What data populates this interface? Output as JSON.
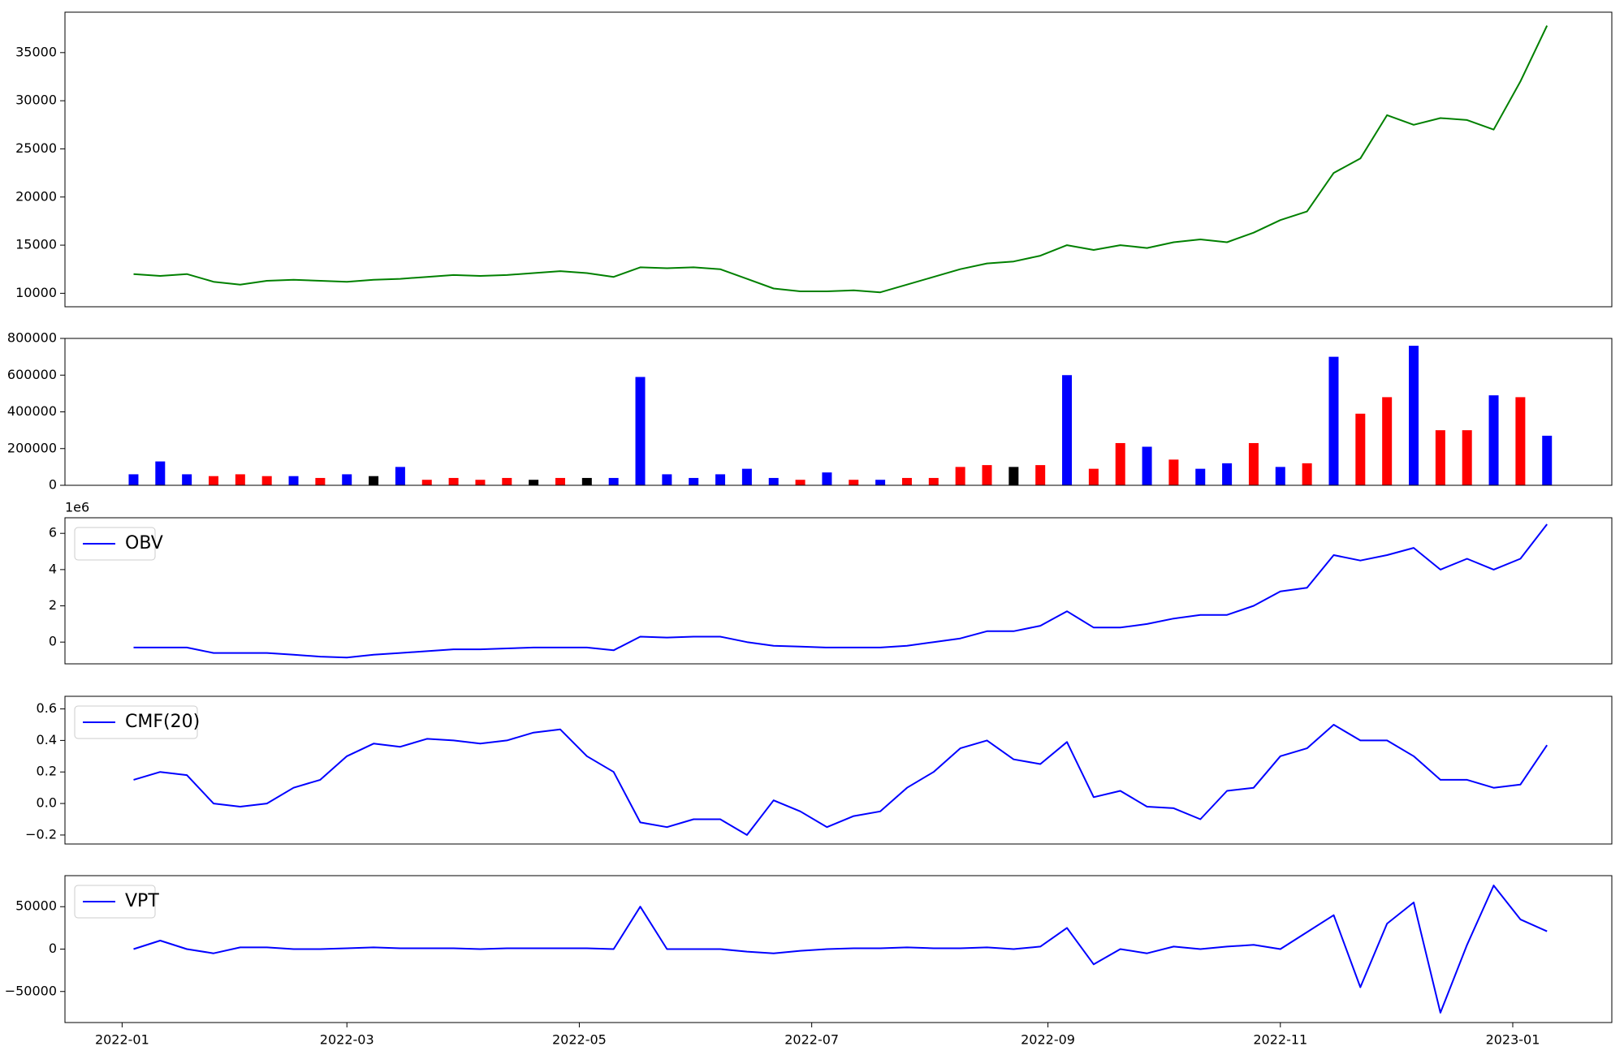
{
  "chart_data": [
    {
      "type": "line",
      "x": [
        "2022-01-04",
        "2022-01-11",
        "2022-01-18",
        "2022-01-25",
        "2022-02-01",
        "2022-02-08",
        "2022-02-15",
        "2022-02-22",
        "2022-03-01",
        "2022-03-08",
        "2022-03-15",
        "2022-03-22",
        "2022-03-29",
        "2022-04-05",
        "2022-04-12",
        "2022-04-19",
        "2022-04-26",
        "2022-05-03",
        "2022-05-10",
        "2022-05-17",
        "2022-05-24",
        "2022-05-31",
        "2022-06-07",
        "2022-06-14",
        "2022-06-21",
        "2022-06-28",
        "2022-07-05",
        "2022-07-12",
        "2022-07-19",
        "2022-07-26",
        "2022-08-02",
        "2022-08-09",
        "2022-08-16",
        "2022-08-23",
        "2022-08-30",
        "2022-09-06",
        "2022-09-13",
        "2022-09-20",
        "2022-09-27",
        "2022-10-04",
        "2022-10-11",
        "2022-10-18",
        "2022-10-25",
        "2022-11-01",
        "2022-11-08",
        "2022-11-15",
        "2022-11-22",
        "2022-11-29",
        "2022-12-06",
        "2022-12-13",
        "2022-12-20",
        "2022-12-27",
        "2023-01-03",
        "2023-01-10"
      ],
      "series": [
        {
          "color": "#008000",
          "values": [
            12000,
            11800,
            12000,
            11200,
            10900,
            11300,
            11400,
            11300,
            11200,
            11400,
            11500,
            11700,
            11900,
            11800,
            11900,
            12100,
            12300,
            12100,
            11700,
            12700,
            12600,
            12700,
            12500,
            11500,
            10500,
            10200,
            10200,
            10300,
            10100,
            10900,
            11700,
            12500,
            13100,
            13300,
            13900,
            15000,
            14500,
            15000,
            14700,
            15300,
            15600,
            15300,
            16300,
            17600,
            18500,
            22500,
            24000,
            28500,
            27500,
            28200,
            28000,
            27000,
            32000,
            37800
          ]
        }
      ],
      "xlim": [
        "2021-12-17",
        "2023-01-27"
      ],
      "ylim": [
        8600,
        39200
      ],
      "yticks": [
        10000,
        15000,
        20000,
        25000,
        30000,
        35000
      ]
    },
    {
      "type": "bar",
      "x": [
        "2022-01-04",
        "2022-01-11",
        "2022-01-18",
        "2022-01-25",
        "2022-02-01",
        "2022-02-08",
        "2022-02-15",
        "2022-02-22",
        "2022-03-01",
        "2022-03-08",
        "2022-03-15",
        "2022-03-22",
        "2022-03-29",
        "2022-04-05",
        "2022-04-12",
        "2022-04-19",
        "2022-04-26",
        "2022-05-03",
        "2022-05-10",
        "2022-05-17",
        "2022-05-24",
        "2022-05-31",
        "2022-06-07",
        "2022-06-14",
        "2022-06-21",
        "2022-06-28",
        "2022-07-05",
        "2022-07-12",
        "2022-07-19",
        "2022-07-26",
        "2022-08-02",
        "2022-08-09",
        "2022-08-16",
        "2022-08-23",
        "2022-08-30",
        "2022-09-06",
        "2022-09-13",
        "2022-09-20",
        "2022-09-27",
        "2022-10-04",
        "2022-10-11",
        "2022-10-18",
        "2022-10-25",
        "2022-11-01",
        "2022-11-08",
        "2022-11-15",
        "2022-11-22",
        "2022-11-29",
        "2022-12-06",
        "2022-12-13",
        "2022-12-20",
        "2022-12-27",
        "2023-01-03",
        "2023-01-10"
      ],
      "values": [
        60000,
        130000,
        60000,
        50000,
        60000,
        50000,
        50000,
        40000,
        60000,
        50000,
        100000,
        30000,
        40000,
        30000,
        40000,
        30000,
        40000,
        40000,
        40000,
        590000,
        60000,
        40000,
        60000,
        90000,
        40000,
        30000,
        70000,
        30000,
        30000,
        40000,
        40000,
        100000,
        110000,
        100000,
        110000,
        600000,
        90000,
        230000,
        210000,
        140000,
        90000,
        120000,
        230000,
        100000,
        120000,
        700000,
        390000,
        480000,
        760000,
        300000,
        300000,
        490000,
        480000,
        270000
      ],
      "colors": [
        "#0000ff",
        "#0000ff",
        "#0000ff",
        "#ff0000",
        "#ff0000",
        "#ff0000",
        "#0000ff",
        "#ff0000",
        "#0000ff",
        "#000000",
        "#0000ff",
        "#ff0000",
        "#ff0000",
        "#ff0000",
        "#ff0000",
        "#000000",
        "#ff0000",
        "#000000",
        "#0000ff",
        "#0000ff",
        "#0000ff",
        "#0000ff",
        "#0000ff",
        "#0000ff",
        "#0000ff",
        "#ff0000",
        "#0000ff",
        "#ff0000",
        "#0000ff",
        "#ff0000",
        "#ff0000",
        "#ff0000",
        "#ff0000",
        "#000000",
        "#ff0000",
        "#0000ff",
        "#ff0000",
        "#ff0000",
        "#0000ff",
        "#ff0000",
        "#0000ff",
        "#0000ff",
        "#ff0000",
        "#0000ff",
        "#ff0000",
        "#0000ff",
        "#ff0000",
        "#ff0000",
        "#0000ff",
        "#ff0000",
        "#ff0000",
        "#0000ff",
        "#ff0000",
        "#0000ff"
      ],
      "xlim": [
        "2021-12-17",
        "2023-01-27"
      ],
      "ylim": [
        0,
        800000
      ],
      "yticks": [
        0,
        200000,
        400000,
        600000,
        800000
      ]
    },
    {
      "type": "line",
      "offset_label": "1e6",
      "legend": "upper left",
      "x": [
        "2022-01-04",
        "2022-01-11",
        "2022-01-18",
        "2022-01-25",
        "2022-02-01",
        "2022-02-08",
        "2022-02-15",
        "2022-02-22",
        "2022-03-01",
        "2022-03-08",
        "2022-03-15",
        "2022-03-22",
        "2022-03-29",
        "2022-04-05",
        "2022-04-12",
        "2022-04-19",
        "2022-04-26",
        "2022-05-03",
        "2022-05-10",
        "2022-05-17",
        "2022-05-24",
        "2022-05-31",
        "2022-06-07",
        "2022-06-14",
        "2022-06-21",
        "2022-06-28",
        "2022-07-05",
        "2022-07-12",
        "2022-07-19",
        "2022-07-26",
        "2022-08-02",
        "2022-08-09",
        "2022-08-16",
        "2022-08-23",
        "2022-08-30",
        "2022-09-06",
        "2022-09-13",
        "2022-09-20",
        "2022-09-27",
        "2022-10-04",
        "2022-10-11",
        "2022-10-18",
        "2022-10-25",
        "2022-11-01",
        "2022-11-08",
        "2022-11-15",
        "2022-11-22",
        "2022-11-29",
        "2022-12-06",
        "2022-12-13",
        "2022-12-20",
        "2022-12-27",
        "2023-01-03",
        "2023-01-10"
      ],
      "series": [
        {
          "name": "OBV",
          "color": "#0000ff",
          "values": [
            -0.3,
            -0.3,
            -0.3,
            -0.6,
            -0.6,
            -0.6,
            -0.7,
            -0.8,
            -0.85,
            -0.7,
            -0.6,
            -0.5,
            -0.4,
            -0.4,
            -0.35,
            -0.3,
            -0.3,
            -0.3,
            -0.45,
            0.3,
            0.25,
            0.3,
            0.3,
            0.0,
            -0.2,
            -0.25,
            -0.3,
            -0.3,
            -0.3,
            -0.2,
            0.0,
            0.2,
            0.6,
            0.6,
            0.9,
            1.7,
            0.8,
            0.8,
            1.0,
            1.3,
            1.5,
            1.5,
            2.0,
            2.8,
            3.0,
            4.8,
            4.5,
            4.8,
            5.2,
            4.0,
            4.6,
            4.0,
            4.6,
            6.5
          ]
        }
      ],
      "xlim": [
        "2021-12-17",
        "2023-01-27"
      ],
      "ylim": [
        -1.2,
        6.86
      ],
      "yticks": [
        0,
        2,
        4,
        6
      ]
    },
    {
      "type": "line",
      "legend": "upper left",
      "x": [
        "2022-01-04",
        "2022-01-11",
        "2022-01-18",
        "2022-01-25",
        "2022-02-01",
        "2022-02-08",
        "2022-02-15",
        "2022-02-22",
        "2022-03-01",
        "2022-03-08",
        "2022-03-15",
        "2022-03-22",
        "2022-03-29",
        "2022-04-05",
        "2022-04-12",
        "2022-04-19",
        "2022-04-26",
        "2022-05-03",
        "2022-05-10",
        "2022-05-17",
        "2022-05-24",
        "2022-05-31",
        "2022-06-07",
        "2022-06-14",
        "2022-06-21",
        "2022-06-28",
        "2022-07-05",
        "2022-07-12",
        "2022-07-19",
        "2022-07-26",
        "2022-08-02",
        "2022-08-09",
        "2022-08-16",
        "2022-08-23",
        "2022-08-30",
        "2022-09-06",
        "2022-09-13",
        "2022-09-20",
        "2022-09-27",
        "2022-10-04",
        "2022-10-11",
        "2022-10-18",
        "2022-10-25",
        "2022-11-01",
        "2022-11-08",
        "2022-11-15",
        "2022-11-22",
        "2022-11-29",
        "2022-12-06",
        "2022-12-13",
        "2022-12-20",
        "2022-12-27",
        "2023-01-03",
        "2023-01-10"
      ],
      "series": [
        {
          "name": "CMF(20)",
          "color": "#0000ff",
          "values": [
            0.15,
            0.2,
            0.18,
            0.0,
            -0.02,
            0.0,
            0.1,
            0.15,
            0.3,
            0.38,
            0.36,
            0.41,
            0.4,
            0.38,
            0.4,
            0.45,
            0.47,
            0.3,
            0.2,
            -0.12,
            -0.15,
            -0.1,
            -0.1,
            -0.2,
            0.02,
            -0.05,
            -0.15,
            -0.08,
            -0.05,
            0.1,
            0.2,
            0.35,
            0.4,
            0.28,
            0.25,
            0.39,
            0.04,
            0.08,
            -0.02,
            -0.03,
            -0.1,
            0.08,
            0.1,
            0.3,
            0.35,
            0.5,
            0.4,
            0.4,
            0.3,
            0.15,
            0.15,
            0.1,
            0.12,
            0.37
          ]
        }
      ],
      "xlim": [
        "2021-12-17",
        "2023-01-27"
      ],
      "ylim": [
        -0.257,
        0.68
      ],
      "yticks": [
        {
          "value": -0.2,
          "label": "−0.2"
        },
        {
          "value": 0,
          "label": "0.0"
        },
        0.2,
        0.4,
        0.6
      ]
    },
    {
      "type": "line",
      "legend": "upper left",
      "x": [
        "2022-01-04",
        "2022-01-11",
        "2022-01-18",
        "2022-01-25",
        "2022-02-01",
        "2022-02-08",
        "2022-02-15",
        "2022-02-22",
        "2022-03-01",
        "2022-03-08",
        "2022-03-15",
        "2022-03-22",
        "2022-03-29",
        "2022-04-05",
        "2022-04-12",
        "2022-04-19",
        "2022-04-26",
        "2022-05-03",
        "2022-05-10",
        "2022-05-17",
        "2022-05-24",
        "2022-05-31",
        "2022-06-07",
        "2022-06-14",
        "2022-06-21",
        "2022-06-28",
        "2022-07-05",
        "2022-07-12",
        "2022-07-19",
        "2022-07-26",
        "2022-08-02",
        "2022-08-09",
        "2022-08-16",
        "2022-08-23",
        "2022-08-30",
        "2022-09-06",
        "2022-09-13",
        "2022-09-20",
        "2022-09-27",
        "2022-10-04",
        "2022-10-11",
        "2022-10-18",
        "2022-10-25",
        "2022-11-01",
        "2022-11-08",
        "2022-11-15",
        "2022-11-22",
        "2022-11-29",
        "2022-12-06",
        "2022-12-13",
        "2022-12-20",
        "2022-12-27",
        "2023-01-03",
        "2023-01-10"
      ],
      "series": [
        {
          "name": "VPT",
          "color": "#0000ff",
          "values": [
            0,
            10000,
            0,
            -5000,
            2000,
            2000,
            0,
            0,
            1000,
            2000,
            1000,
            1000,
            1000,
            0,
            1000,
            1000,
            1000,
            1000,
            0,
            50000,
            0,
            0,
            0,
            -3000,
            -5000,
            -2000,
            0,
            1000,
            1000,
            2000,
            1000,
            1000,
            2000,
            0,
            3000,
            25000,
            -18000,
            0,
            -5000,
            3000,
            0,
            3000,
            5000,
            0,
            20000,
            40000,
            -45000,
            30000,
            55000,
            -75000,
            5000,
            75000,
            35000,
            21000
          ]
        }
      ],
      "xlim": [
        "2021-12-17",
        "2023-01-27"
      ],
      "ylim": [
        -86600,
        86600
      ],
      "yticks": [
        {
          "value": -50000,
          "label": "−50000"
        },
        0,
        50000
      ],
      "xticks": [
        {
          "value": "2022-01-01",
          "label": "2022-01"
        },
        {
          "value": "2022-03-01",
          "label": "2022-03"
        },
        {
          "value": "2022-05-01",
          "label": "2022-05"
        },
        {
          "value": "2022-07-01",
          "label": "2022-07"
        },
        {
          "value": "2022-09-01",
          "label": "2022-09"
        },
        {
          "value": "2022-11-01",
          "label": "2022-11"
        },
        {
          "value": "2023-01-01",
          "label": "2023-01"
        }
      ]
    }
  ]
}
